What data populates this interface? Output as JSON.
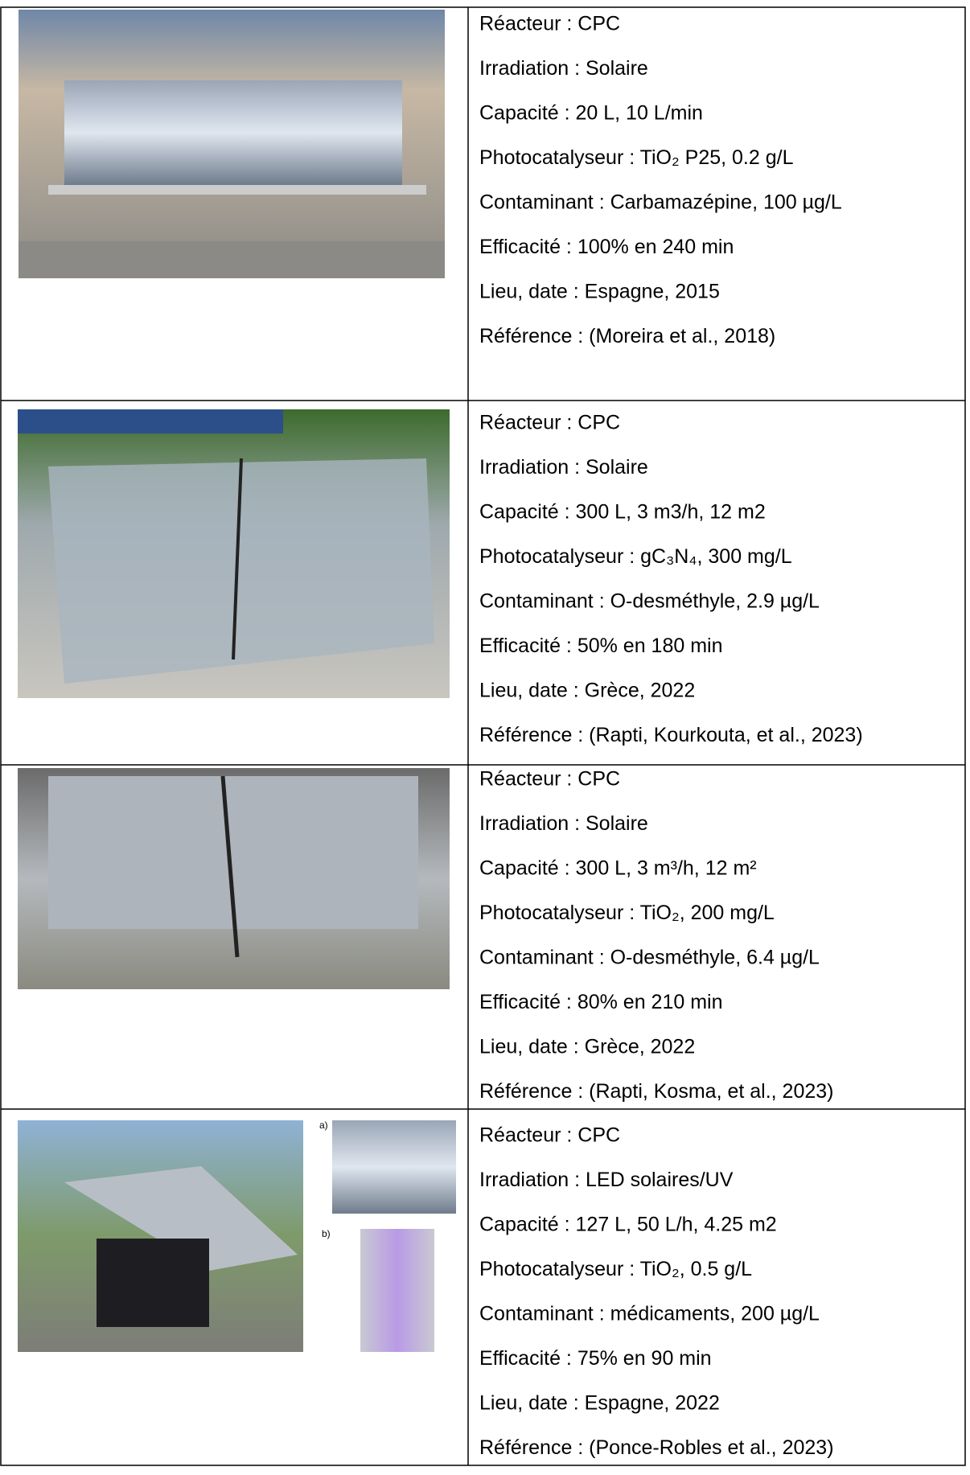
{
  "table": {
    "rows": [
      {
        "lines": [
          "Réacteur : CPC",
          "Irradiation : Solaire",
          "Capacité : 20 L, 10 L/min",
          "Photocatalyseur : TiO₂ P25, 0.2 g/L",
          "Contaminant : Carbamazépine, 100 µg/L",
          "Efficacité : 100% en 240 min",
          "Lieu, date : Espagne, 2015",
          "Référence : (Moreira et al., 2018)"
        ]
      },
      {
        "lines": [
          "Réacteur : CPC",
          "Irradiation : Solaire",
          "Capacité : 300 L, 3 m3/h, 12 m2",
          "Photocatalyseur : gC₃N₄, 300 mg/L",
          "Contaminant : O-desméthyle, 2.9 µg/L",
          "Efficacité : 50% en 180 min",
          "Lieu, date : Grèce, 2022",
          "Référence : (Rapti, Kourkouta, et al., 2023)"
        ]
      },
      {
        "lines": [
          "Réacteur : CPC",
          "Irradiation : Solaire",
          "Capacité : 300 L, 3 m³/h, 12 m²",
          "Photocatalyseur : TiO₂, 200 mg/L",
          "Contaminant : O-desméthyle, 6.4 µg/L",
          "Efficacité : 80% en 210 min",
          "Lieu, date : Grèce, 2022",
          "Référence : (Rapti, Kosma, et al., 2023)"
        ]
      },
      {
        "image_labels": [
          "a)",
          "b)"
        ],
        "lines": [
          "Réacteur : CPC",
          "Irradiation : LED solaires/UV",
          "Capacité : 127 L, 50 L/h, 4.25 m2",
          "Photocatalyseur : TiO₂, 0.5 g/L",
          "Contaminant : médicaments, 200 µg/L",
          "Efficacité : 75% en 90 min",
          "Lieu, date : Espagne, 2022",
          "Référence : (Ponce-Robles et al., 2023)"
        ]
      }
    ]
  }
}
